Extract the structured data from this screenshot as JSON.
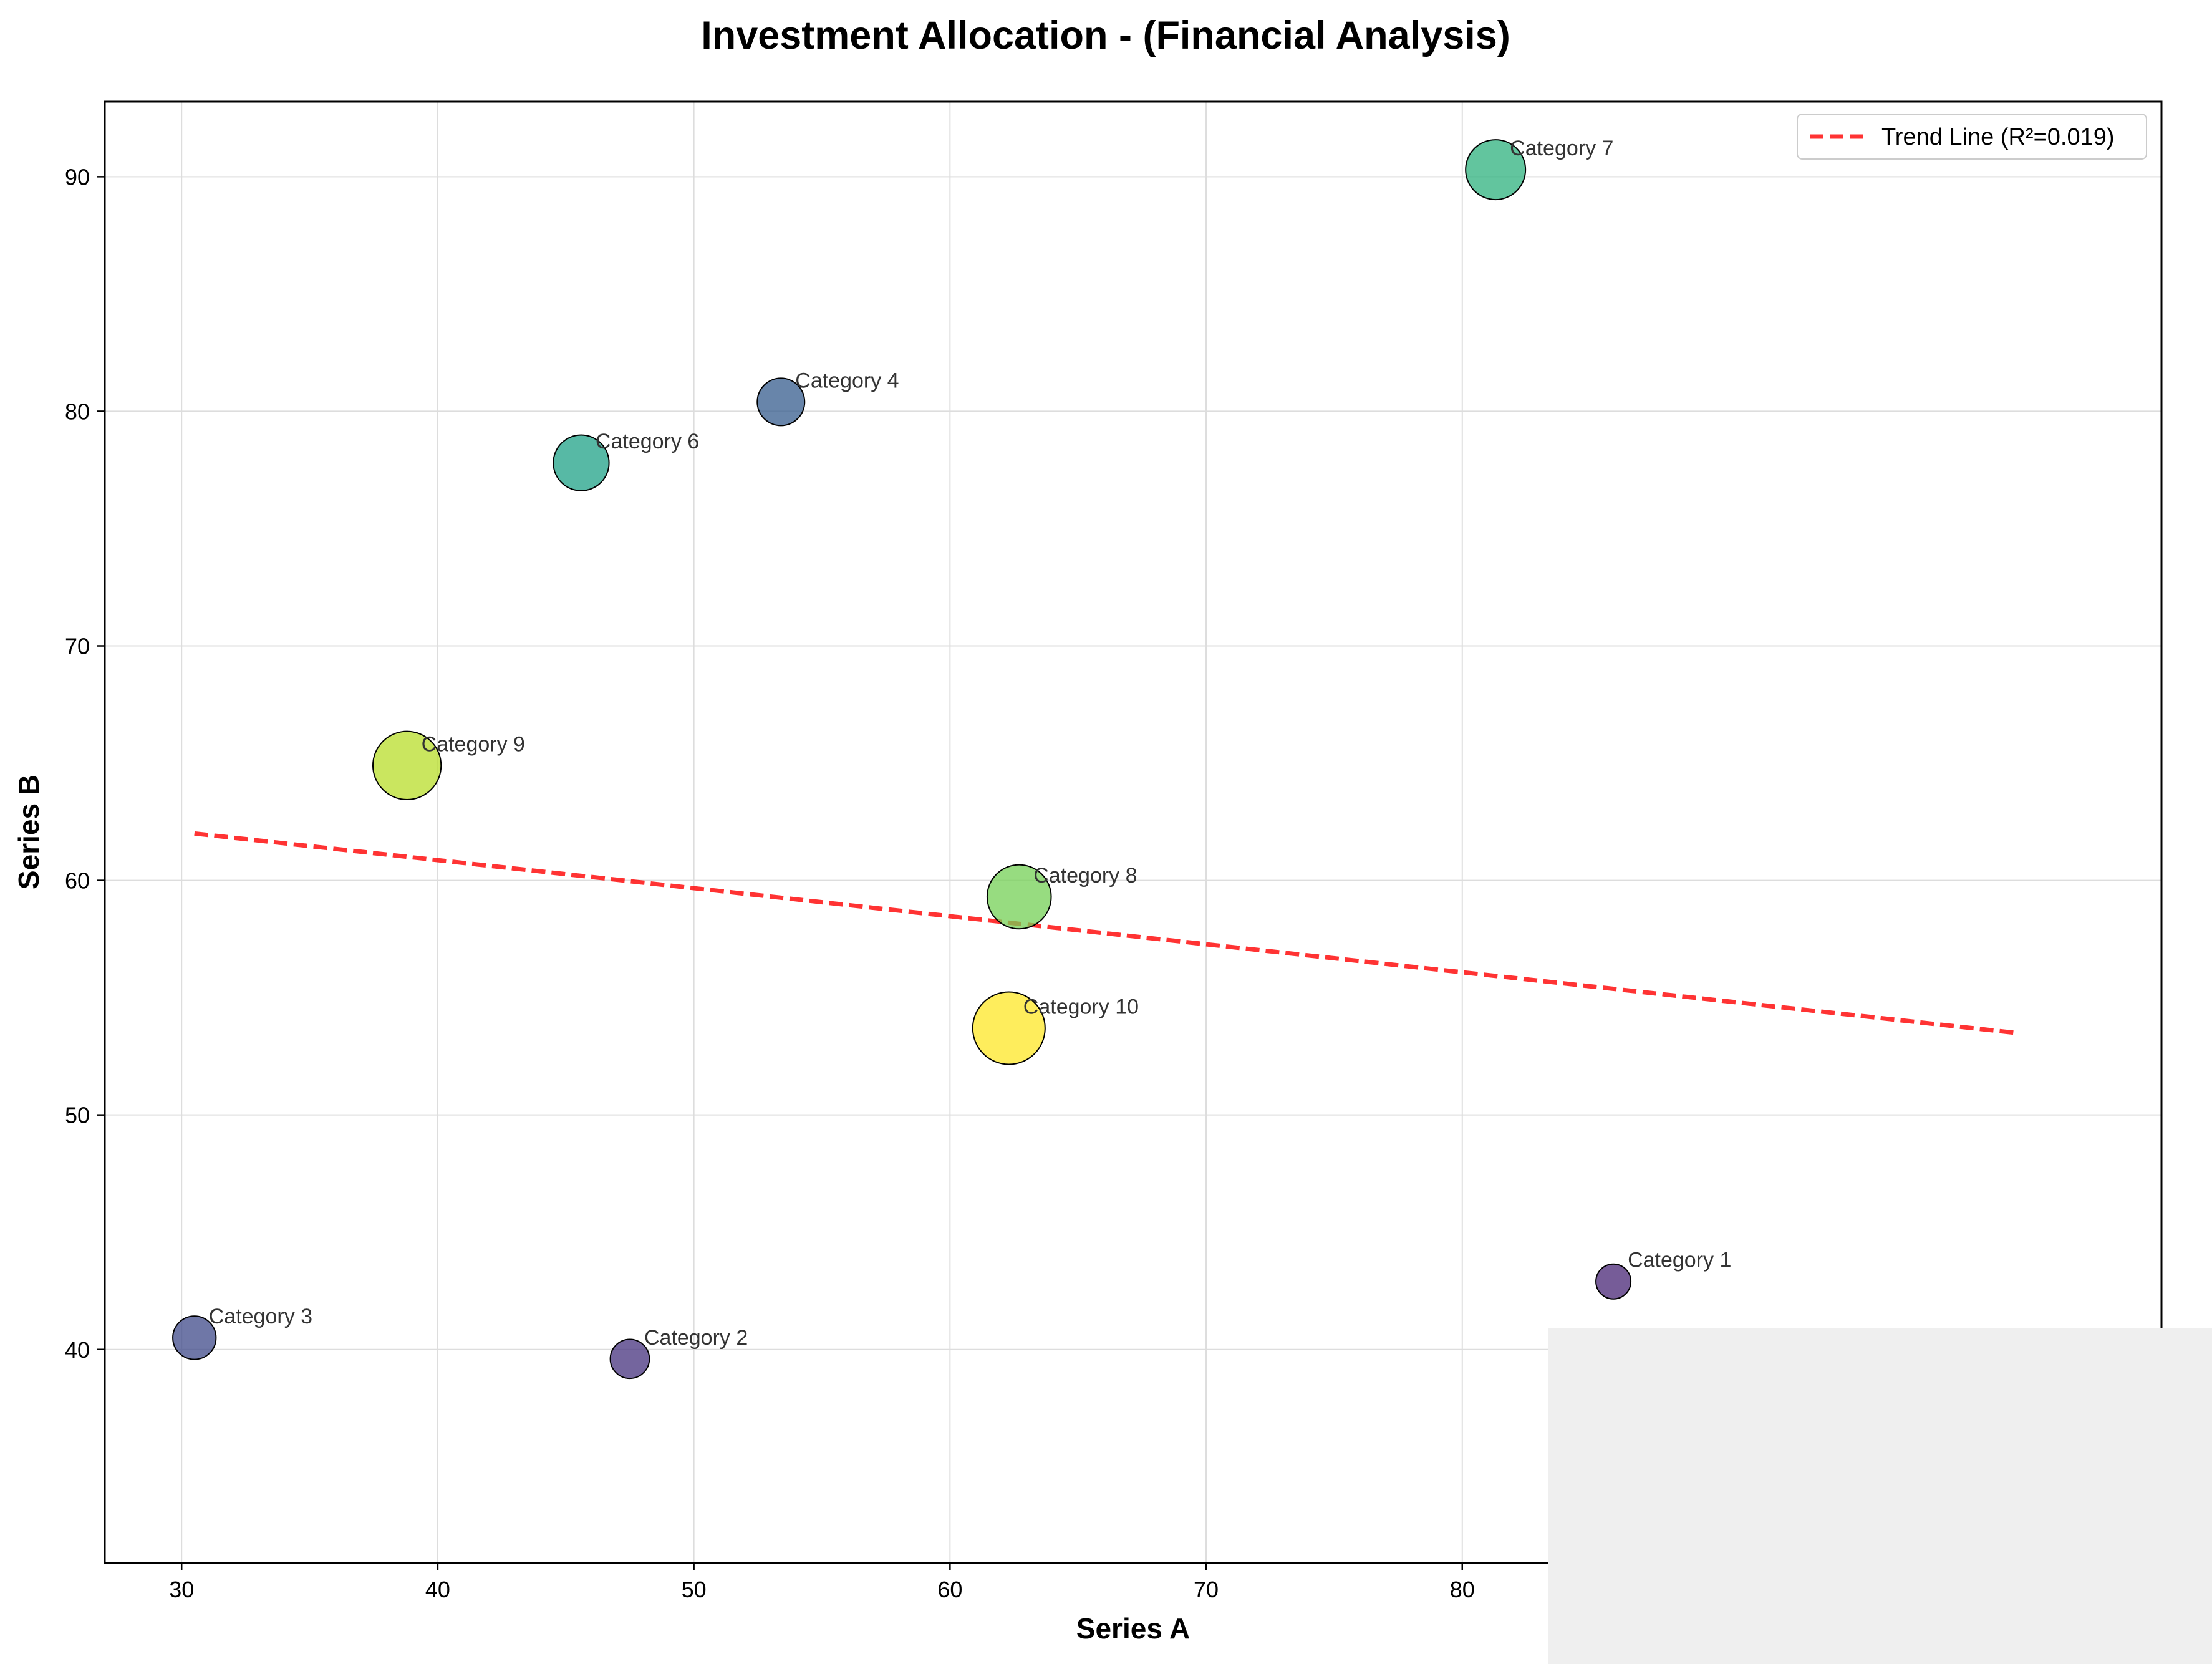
{
  "chart_data": {
    "type": "scatter",
    "title": "Investment Allocation - (Financial Analysis)",
    "xlabel": "Series A",
    "ylabel": "Series B",
    "xlim": [
      27,
      107.3
    ],
    "ylim": [
      30.9,
      93.2
    ],
    "xticks": [
      30,
      40,
      50,
      60,
      70,
      80
    ],
    "yticks": [
      40,
      50,
      60,
      70,
      80,
      90
    ],
    "grid": true,
    "legend_position": "top-right",
    "points": [
      {
        "label": "Category 1",
        "x": 85.9,
        "y": 42.9,
        "size": 1,
        "color": "#482576"
      },
      {
        "label": "Category 2",
        "x": 47.5,
        "y": 39.6,
        "size": 2,
        "color": "#46327e"
      },
      {
        "label": "Category 3",
        "x": 30.5,
        "y": 40.5,
        "size": 3,
        "color": "#3f4a8a"
      },
      {
        "label": "Category 4",
        "x": 53.4,
        "y": 80.4,
        "size": 4,
        "color": "#365c8d"
      },
      {
        "label": "Category 6",
        "x": 45.6,
        "y": 77.8,
        "size": 6,
        "color": "#1fa187"
      },
      {
        "label": "Category 7",
        "x": 81.3,
        "y": 90.3,
        "size": 7,
        "color": "#2db27d"
      },
      {
        "label": "Category 8",
        "x": 62.7,
        "y": 59.3,
        "size": 8,
        "color": "#74d055"
      },
      {
        "label": "Category 9",
        "x": 38.8,
        "y": 64.9,
        "size": 9,
        "color": "#b8de29"
      },
      {
        "label": "Category 10",
        "x": 62.3,
        "y": 53.7,
        "size": 10,
        "color": "#fde725"
      }
    ],
    "trend_line": {
      "label": "Trend Line (R²=0.019)",
      "color": "#ff0000",
      "x": [
        30.5,
        101.6
      ],
      "y": [
        62.0,
        53.5
      ]
    }
  }
}
